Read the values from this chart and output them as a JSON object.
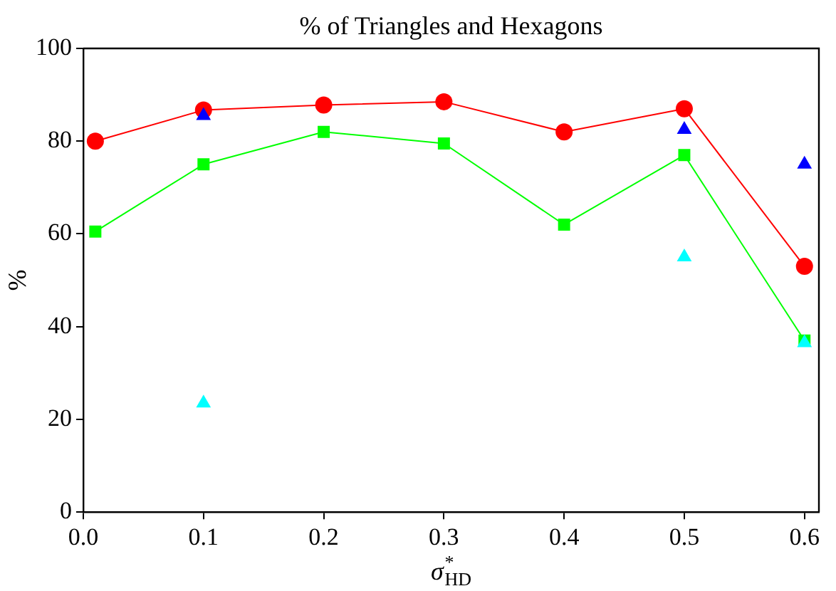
{
  "chart_data": {
    "type": "line",
    "title": "% of Triangles and Hexagons",
    "xlabel": "σ$^{*}$$_{HD}$",
    "ylabel": "%",
    "x": [
      0.01,
      0.1,
      0.2,
      0.3,
      0.4,
      0.5,
      0.6
    ],
    "series": [
      {
        "type": "line",
        "color": "#ff0000",
        "marker": "circle",
        "values": [
          80,
          86.7,
          87.8,
          88.5,
          82,
          87,
          53
        ]
      },
      {
        "type": "line",
        "color": "#00ff00",
        "marker": "square",
        "values": [
          60.5,
          75,
          82,
          79.5,
          62,
          77,
          37
        ]
      },
      {
        "type": "scatter",
        "color": "#0000ff",
        "marker": "triangle",
        "x": [
          0.1,
          0.5,
          0.6
        ],
        "values": [
          85.5,
          82.5,
          75
        ]
      },
      {
        "type": "scatter",
        "color": "#00ffff",
        "marker": "triangle",
        "x": [
          0.1,
          0.5,
          0.6
        ],
        "values": [
          23.5,
          55,
          36.5
        ]
      }
    ],
    "xlim": [
      0,
      0.612
    ],
    "xticks": [
      {
        "value": 0,
        "label": "0.0"
      },
      0.1,
      0.2,
      0.3,
      0.4,
      0.5,
      0.6
    ],
    "ylim": [
      0,
      100
    ],
    "yticks": [
      0,
      20,
      40,
      60,
      80,
      100
    ],
    "grid": false,
    "legend": false
  }
}
